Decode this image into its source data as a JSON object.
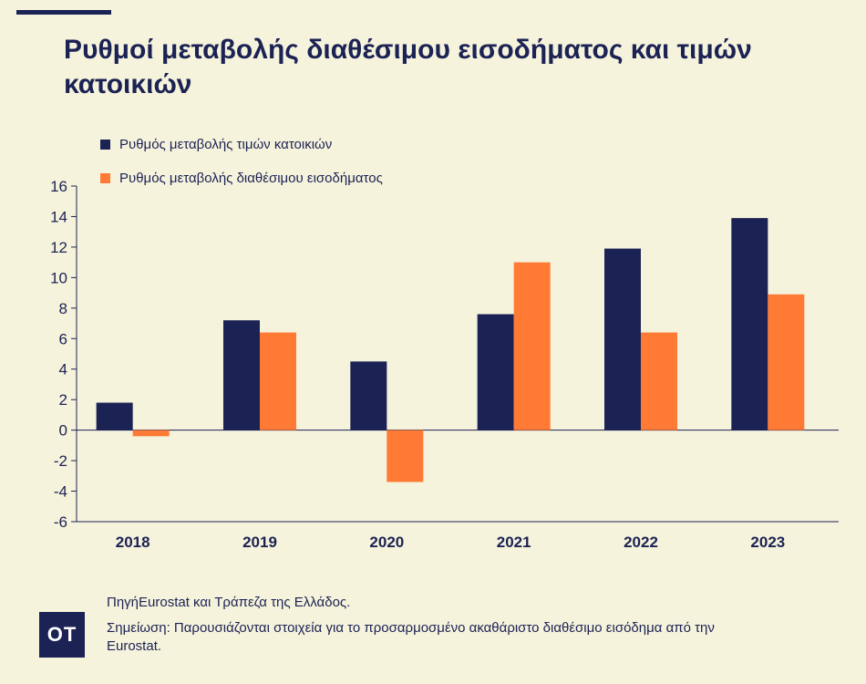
{
  "title": "Ρυθμοί μεταβολής διαθέσιμου εισοδήματος και τιμών κατοικιών",
  "logo_text": "OT",
  "footer": {
    "source": "ΠηγήEurostat και Τράπεζα της Ελλάδος.",
    "note": "Σημείωση: Παρουσιάζονται στοιχεία για το προσαρμοσμένο ακαθάριστο διαθέσιμο εισόδημα από την Eurostat."
  },
  "colors": {
    "background": "#f6f3dc",
    "navy": "#1b2254",
    "orange": "#ff7a35"
  },
  "chart_data": {
    "type": "bar",
    "title": "Ρυθμοί μεταβολής διαθέσιμου εισοδήματος και τιμών κατοικιών",
    "xlabel": "",
    "ylabel": "",
    "categories": [
      "2018",
      "2019",
      "2020",
      "2021",
      "2022",
      "2023"
    ],
    "ylim": [
      -6,
      16
    ],
    "yticks": [
      "16",
      "14",
      "12",
      "10",
      "8",
      "6",
      "4",
      "2",
      "0",
      "-2",
      "-4",
      "-6"
    ],
    "grid": false,
    "legend_position": "top-left",
    "series": [
      {
        "name": "Ρυθμός μεταβολής τιμών κατοικιών",
        "color": "#1b2254",
        "values": [
          1.8,
          7.2,
          4.5,
          7.6,
          11.9,
          13.9
        ]
      },
      {
        "name": "Ρυθμός μεταβολής διαθέσιμου εισοδήματος",
        "color": "#ff7a35",
        "values": [
          -0.4,
          6.4,
          -3.4,
          11.0,
          6.4,
          8.9
        ]
      }
    ]
  }
}
